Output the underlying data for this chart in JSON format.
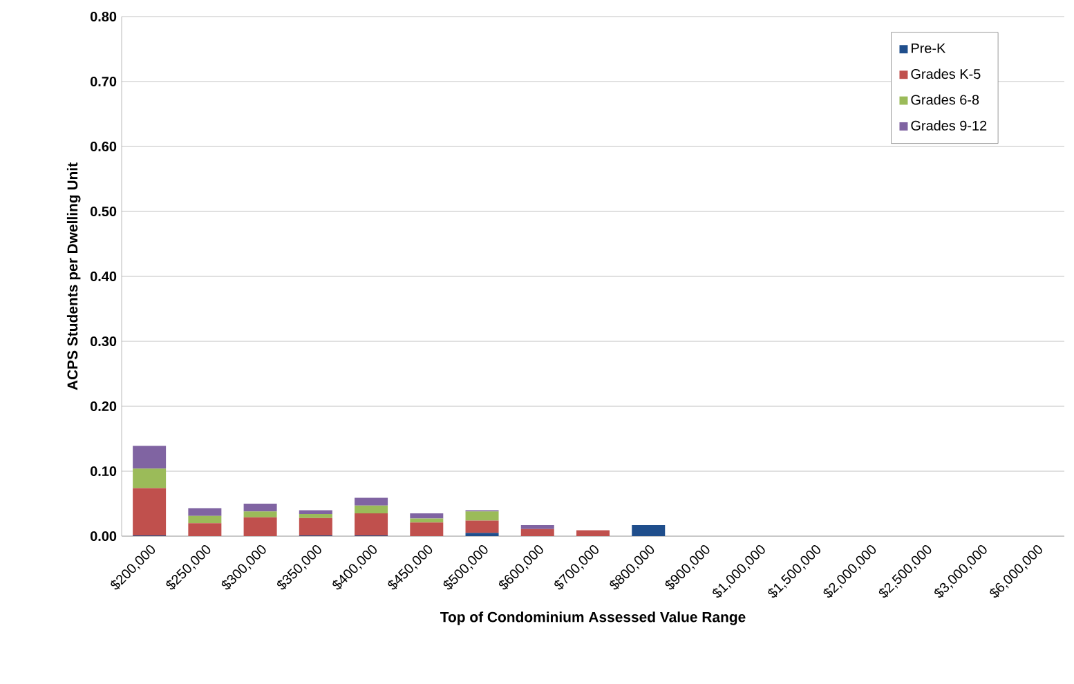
{
  "chart_data": {
    "type": "bar",
    "stacked": true,
    "xlabel": "Top of Condominium  Assessed Value Range",
    "ylabel": "ACPS Students per Dwelling Unit",
    "categories": [
      "$200,000",
      "$250,000",
      "$300,000",
      "$350,000",
      "$400,000",
      "$450,000",
      "$500,000",
      "$600,000",
      "$700,000",
      "$800,000",
      "$900,000",
      "$1,000,000",
      "$1,500,000",
      "$2,000,000",
      "$2,500,000",
      "$3,000,000",
      "$6,000,000"
    ],
    "series": [
      {
        "name": "Pre-K",
        "color": "#1f4e8c",
        "values": [
          0.001,
          0,
          0,
          0.001,
          0.001,
          0,
          0.005,
          0,
          0,
          0.017,
          0,
          0,
          0,
          0,
          0,
          0,
          0
        ]
      },
      {
        "name": "Grades K-5",
        "color": "#c0504d",
        "values": [
          0.073,
          0.02,
          0.029,
          0.027,
          0.034,
          0.021,
          0.019,
          0.011,
          0.009,
          0,
          0,
          0,
          0,
          0,
          0,
          0,
          0
        ]
      },
      {
        "name": "Grades 6-8",
        "color": "#9bbb59",
        "values": [
          0.03,
          0.011,
          0.009,
          0.006,
          0.012,
          0.006,
          0.014,
          0,
          0,
          0,
          0,
          0,
          0,
          0,
          0,
          0,
          0
        ]
      },
      {
        "name": "Grades 9-12",
        "color": "#8064a2",
        "values": [
          0.035,
          0.012,
          0.012,
          0.006,
          0.012,
          0.008,
          0.002,
          0.006,
          0,
          0,
          0,
          0,
          0,
          0,
          0,
          0,
          0
        ]
      }
    ],
    "ylim": [
      0,
      0.8
    ],
    "yticks": [
      {
        "value": 0,
        "label": "0.00"
      },
      {
        "value": 0.1,
        "label": "0.10"
      },
      {
        "value": 0.2,
        "label": "0.20"
      },
      {
        "value": 0.3,
        "label": "0.30"
      },
      {
        "value": 0.4,
        "label": "0.40"
      },
      {
        "value": 0.5,
        "label": "0.50"
      },
      {
        "value": 0.6,
        "label": "0.60"
      },
      {
        "value": 0.7,
        "label": "0.70"
      },
      {
        "value": 0.8,
        "label": "0.80"
      }
    ],
    "grid": "y",
    "legend": "top right"
  }
}
